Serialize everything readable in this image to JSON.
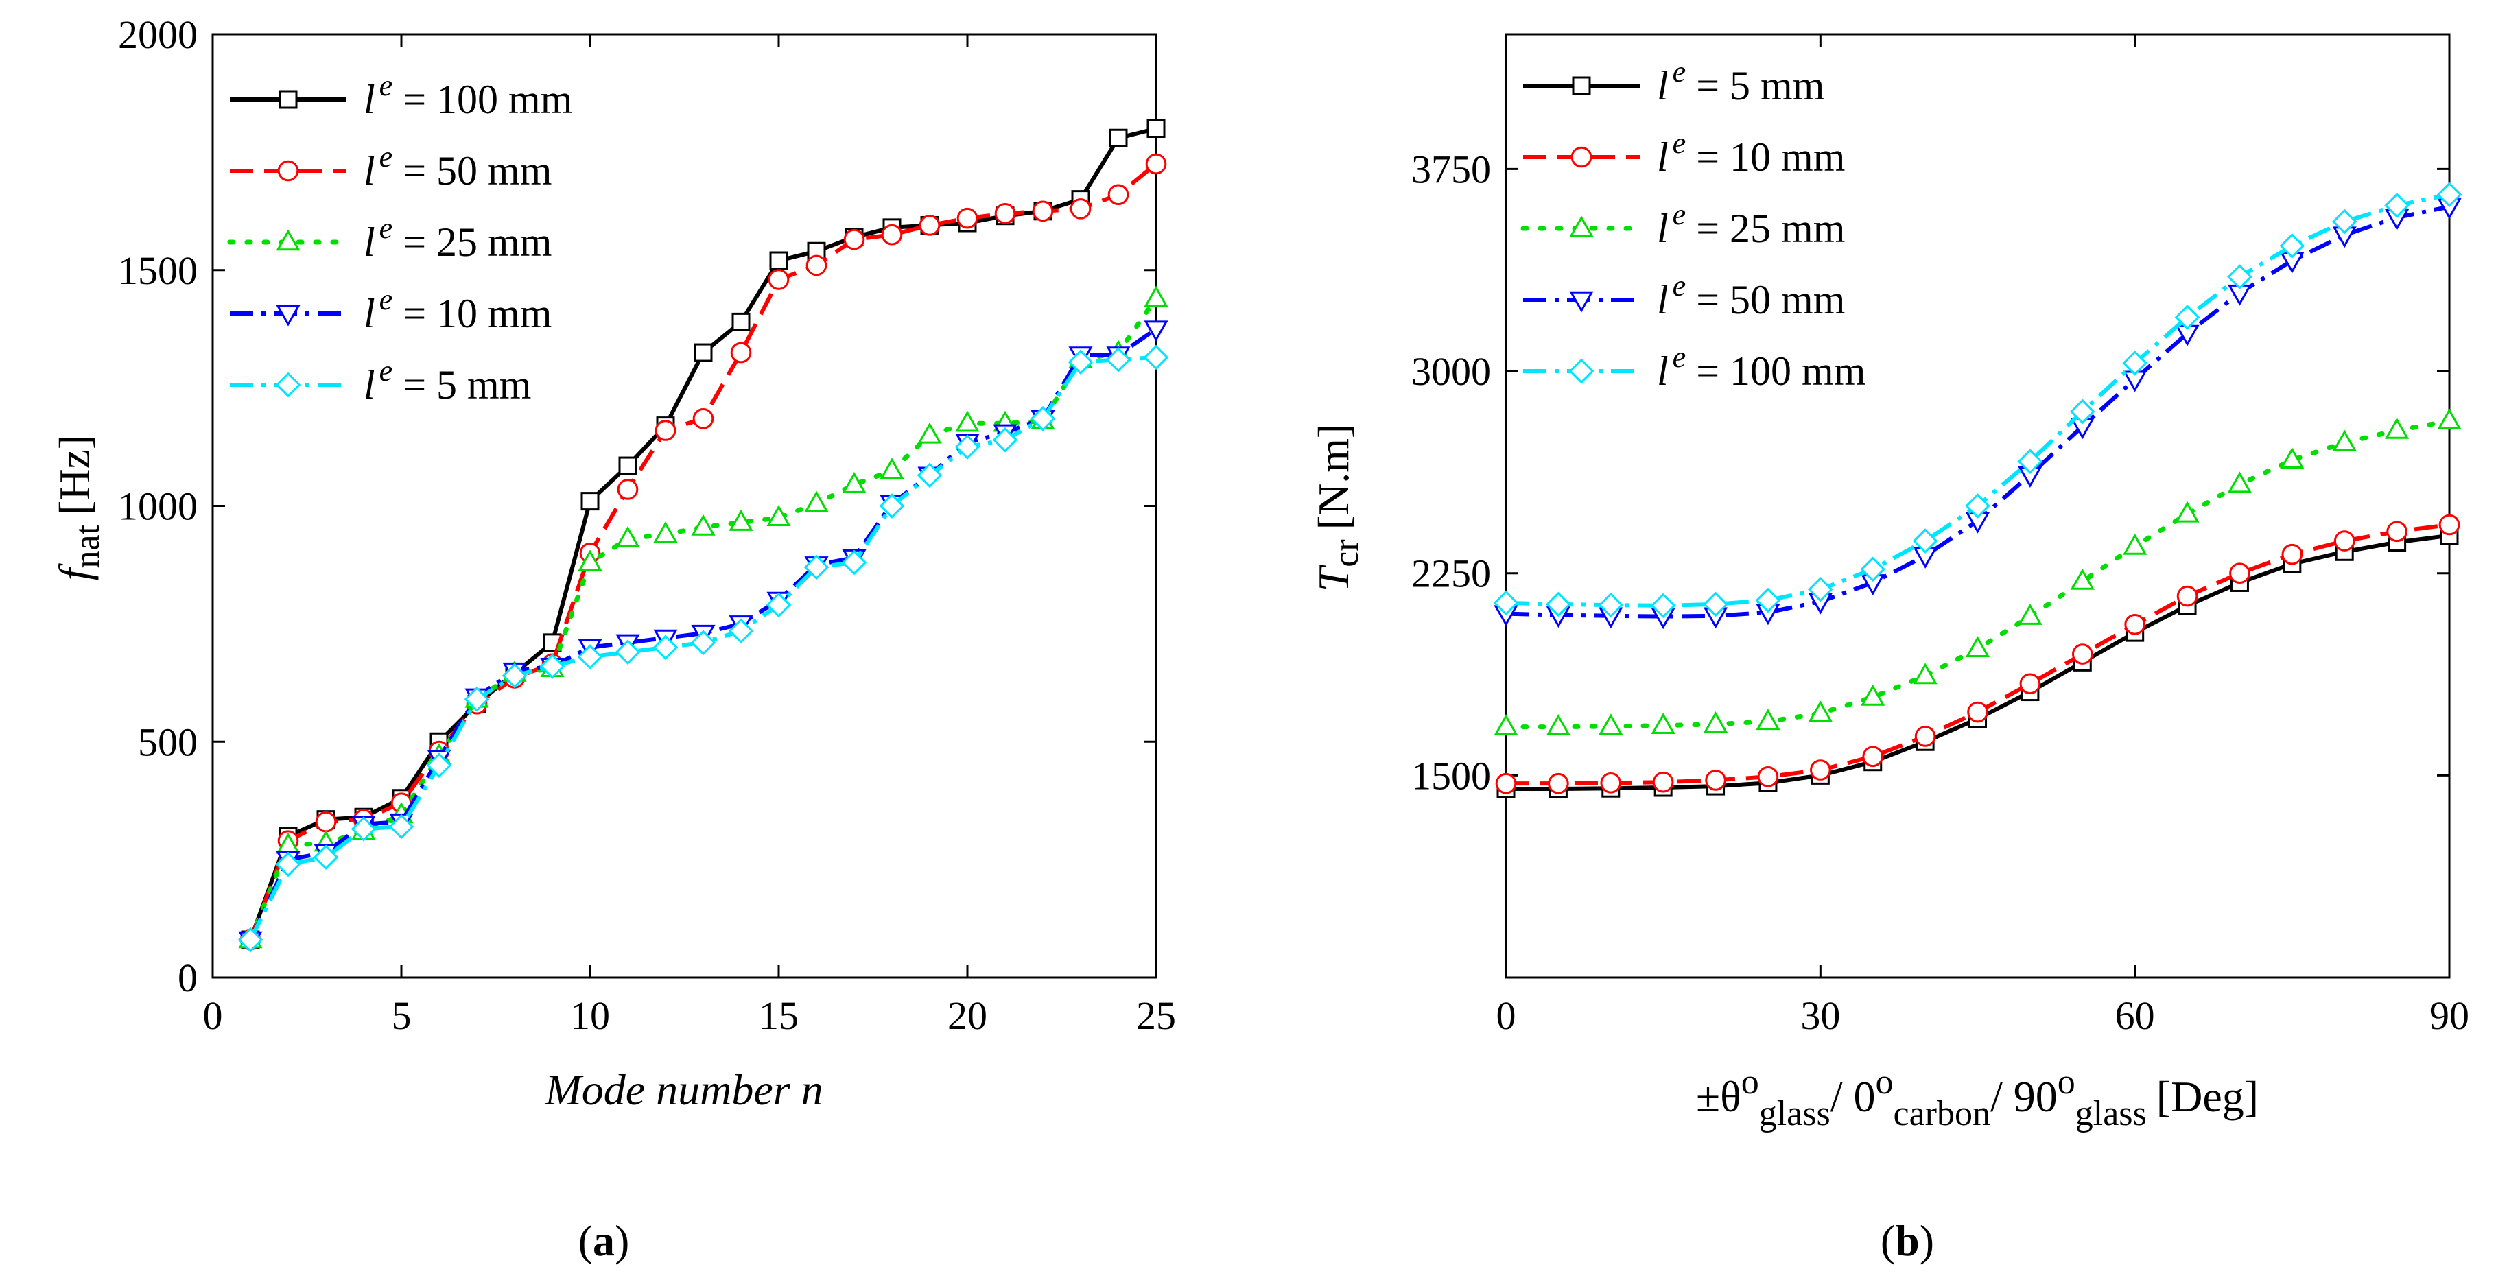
{
  "chart_data": [
    {
      "panel": "(a)",
      "panel_letter": "a",
      "type": "line",
      "title": "",
      "xlabel": "Mode number n",
      "ylabel": {
        "main": "f",
        "sub": "nat",
        "unit": "[Hz]"
      },
      "xlim": [
        0,
        25
      ],
      "ylim": [
        0,
        2000
      ],
      "xticks": [
        0,
        5,
        10,
        15,
        20,
        25
      ],
      "yticks": [
        0,
        500,
        1000,
        1500,
        2000
      ],
      "grid": false,
      "legend_position": "top-left",
      "x": [
        1,
        2,
        3,
        4,
        5,
        6,
        7,
        8,
        9,
        10,
        11,
        12,
        13,
        14,
        15,
        16,
        17,
        18,
        19,
        20,
        21,
        22,
        23,
        24,
        25
      ],
      "series": [
        {
          "name": "l e = 100 mm",
          "legend_var": "l",
          "legend_sup": "e",
          "legend_rest": " = 100 mm",
          "color": "#000000",
          "dash": "solid",
          "marker": "square",
          "values": [
            80,
            300,
            335,
            340,
            380,
            500,
            580,
            645,
            710,
            1010,
            1085,
            1170,
            1325,
            1390,
            1520,
            1540,
            1570,
            1590,
            1595,
            1600,
            1615,
            1625,
            1650,
            1780,
            1800
          ]
        },
        {
          "name": "l e = 50 mm",
          "legend_var": "l",
          "legend_sup": "e",
          "legend_rest": " = 50 mm",
          "color": "#ff0000",
          "dash": "dash",
          "marker": "circle",
          "values": [
            80,
            290,
            330,
            335,
            370,
            480,
            580,
            635,
            665,
            900,
            1035,
            1160,
            1185,
            1325,
            1480,
            1510,
            1565,
            1575,
            1595,
            1610,
            1620,
            1625,
            1630,
            1660,
            1725
          ]
        },
        {
          "name": "l e = 25 mm",
          "legend_var": "l",
          "legend_sup": "e",
          "legend_rest": " = 25 mm",
          "color": "#00dd00",
          "dash": "dot",
          "marker": "triangle-up",
          "values": [
            80,
            280,
            285,
            310,
            345,
            470,
            590,
            645,
            655,
            880,
            930,
            940,
            955,
            965,
            975,
            1005,
            1045,
            1075,
            1150,
            1175,
            1175,
            1180,
            1310,
            1325,
            1440
          ]
        },
        {
          "name": "l e = 10 mm",
          "legend_var": "l",
          "legend_sup": "e",
          "legend_rest": " = 10 mm",
          "color": "#0000ff",
          "dash": "dashdot",
          "marker": "triangle-down",
          "values": [
            80,
            250,
            265,
            325,
            330,
            465,
            595,
            650,
            660,
            700,
            710,
            720,
            730,
            750,
            800,
            875,
            890,
            1005,
            1065,
            1135,
            1155,
            1185,
            1320,
            1320,
            1375
          ]
        },
        {
          "name": "l e = 5 mm",
          "legend_var": "l",
          "legend_sup": "e",
          "legend_rest": " = 5 mm",
          "color": "#00e5ff",
          "dash": "dashdot",
          "marker": "diamond",
          "values": [
            80,
            240,
            255,
            315,
            320,
            450,
            590,
            640,
            660,
            680,
            690,
            700,
            710,
            735,
            790,
            870,
            880,
            1000,
            1065,
            1125,
            1140,
            1185,
            1305,
            1310,
            1315
          ]
        }
      ]
    },
    {
      "panel": "(b)",
      "panel_letter": "b",
      "type": "line",
      "title": "",
      "xlabel": {
        "sym1": "±θ",
        "sub1": "glass",
        "sym2": "/ 0",
        "sub2": "carbon",
        "sym3": "/ 90",
        "sub3": "glass",
        "sup": "o",
        "unit": "[Deg]"
      },
      "ylabel": {
        "main": "T",
        "sub": "cr",
        "unit": "[N.m]"
      },
      "xlim": [
        0,
        90
      ],
      "ylim": [
        750,
        4250
      ],
      "xticks": [
        0,
        30,
        60,
        90
      ],
      "yticks": [
        1500,
        2250,
        3000,
        3750
      ],
      "grid": false,
      "legend_position": "top-left",
      "x": [
        0,
        5,
        10,
        15,
        20,
        25,
        30,
        35,
        40,
        45,
        50,
        55,
        60,
        65,
        70,
        75,
        80,
        85,
        90
      ],
      "series": [
        {
          "name": "l e = 5 mm",
          "legend_var": "l",
          "legend_sup": "e",
          "legend_rest": " = 5 mm",
          "color": "#000000",
          "dash": "solid",
          "marker": "square",
          "values": [
            1450,
            1450,
            1452,
            1455,
            1460,
            1472,
            1500,
            1550,
            1625,
            1710,
            1810,
            1920,
            2030,
            2130,
            2215,
            2285,
            2330,
            2365,
            2390
          ]
        },
        {
          "name": "l e = 10 mm",
          "legend_var": "l",
          "legend_sup": "e",
          "legend_rest": " = 10 mm",
          "color": "#ff0000",
          "dash": "dash",
          "marker": "circle",
          "values": [
            1470,
            1470,
            1472,
            1475,
            1482,
            1495,
            1520,
            1570,
            1645,
            1735,
            1840,
            1950,
            2060,
            2165,
            2250,
            2320,
            2370,
            2405,
            2430
          ]
        },
        {
          "name": "l e = 25 mm",
          "legend_var": "l",
          "legend_sup": "e",
          "legend_rest": " = 25 mm",
          "color": "#00dd00",
          "dash": "dot",
          "marker": "triangle-up",
          "values": [
            1680,
            1680,
            1682,
            1685,
            1690,
            1700,
            1730,
            1790,
            1870,
            1970,
            2090,
            2220,
            2350,
            2470,
            2580,
            2670,
            2735,
            2780,
            2815
          ]
        },
        {
          "name": "l e = 50 mm",
          "legend_var": "l",
          "legend_sup": "e",
          "legend_rest": " = 50 mm",
          "color": "#0000ff",
          "dash": "dashdot",
          "marker": "triangle-down",
          "values": [
            2100,
            2095,
            2092,
            2090,
            2092,
            2105,
            2145,
            2215,
            2315,
            2445,
            2615,
            2795,
            2970,
            3140,
            3290,
            3410,
            3505,
            3570,
            3610
          ]
        },
        {
          "name": "l e = 100 mm",
          "legend_var": "l",
          "legend_sup": "e",
          "legend_rest": " = 100 mm",
          "color": "#00e5ff",
          "dash": "dashdot",
          "marker": "diamond",
          "values": [
            2140,
            2135,
            2132,
            2130,
            2135,
            2150,
            2190,
            2265,
            2370,
            2500,
            2665,
            2850,
            3030,
            3200,
            3350,
            3465,
            3555,
            3615,
            3655
          ]
        }
      ]
    }
  ]
}
